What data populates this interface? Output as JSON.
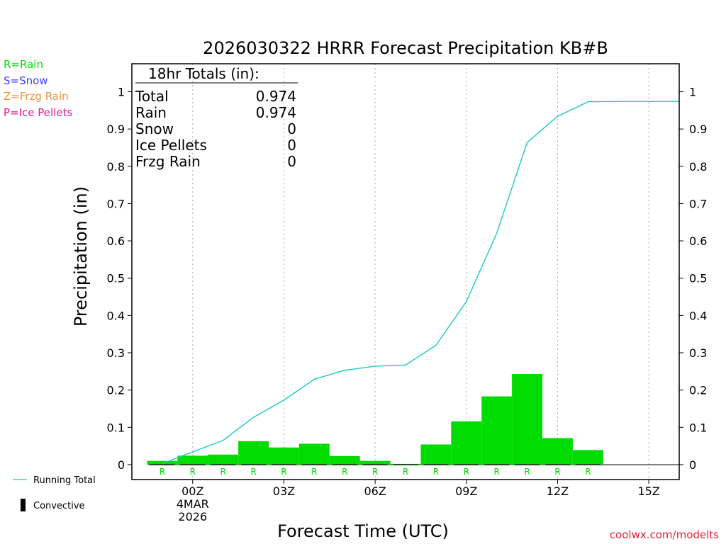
{
  "chart_data": {
    "type": "bar",
    "title": "2026030322 HRRR Forecast Precipitation KB#B",
    "xlabel": "Forecast Time (UTC)",
    "ylabel": "Precipitation (in)",
    "ylim": [
      -0.04,
      1.075
    ],
    "xlim": [
      -1.0,
      17.0
    ],
    "yticks": [
      0,
      0.1,
      0.2,
      0.3,
      0.4,
      0.5,
      0.6,
      0.7,
      0.8,
      0.9,
      1
    ],
    "ytick_labels": [
      "0",
      "0.1",
      "0.2",
      "0.3",
      "0.4",
      "0.5",
      "0.6",
      "0.7",
      "0.8",
      "0.9",
      "1"
    ],
    "xticks": [
      {
        "x": 1,
        "label": "00Z",
        "sub": [
          "4MAR",
          "2026"
        ]
      },
      {
        "x": 4,
        "label": "03Z"
      },
      {
        "x": 7,
        "label": "06Z"
      },
      {
        "x": 10,
        "label": "09Z"
      },
      {
        "x": 13,
        "label": "12Z"
      },
      {
        "x": 16,
        "label": "15Z"
      }
    ],
    "hourly_precip": {
      "name": "Hourly precipitation (Rain)",
      "color": "#00dc00",
      "x": [
        0,
        1,
        2,
        3,
        4,
        5,
        6,
        7,
        8,
        9,
        10,
        11,
        12,
        13,
        14
      ],
      "values": [
        0.01,
        0.024,
        0.027,
        0.063,
        0.046,
        0.056,
        0.023,
        0.01,
        0.002,
        0.054,
        0.116,
        0.183,
        0.243,
        0.071,
        0.039
      ],
      "ptype": [
        "R",
        "R",
        "R",
        "R",
        "R",
        "R",
        "R",
        "R",
        "R",
        "R",
        "R",
        "R",
        "R",
        "R",
        "R"
      ]
    },
    "running_total": {
      "name": "Running Total",
      "color": "#1ec8c8",
      "x": [
        0,
        1,
        2,
        3,
        4,
        5,
        6,
        7,
        8,
        9,
        10,
        11,
        12,
        13,
        14,
        15,
        16,
        17
      ],
      "values": [
        0.003,
        0.034,
        0.065,
        0.127,
        0.173,
        0.229,
        0.253,
        0.264,
        0.267,
        0.32,
        0.437,
        0.621,
        0.864,
        0.934,
        0.973,
        0.974,
        0.974,
        0.974
      ]
    },
    "convective": {
      "name": "Convective",
      "values": [
        0,
        0,
        0,
        0,
        0,
        0,
        0,
        0,
        0,
        0,
        0,
        0,
        0,
        0,
        0
      ]
    }
  },
  "totals_box": {
    "header": "18hr Totals (in):",
    "rows": [
      {
        "label": "Total",
        "value": "0.974"
      },
      {
        "label": "Rain",
        "value": "0.974"
      },
      {
        "label": "Snow",
        "value": "0"
      },
      {
        "label": "Ice Pellets",
        "value": "0"
      },
      {
        "label": "Frzg Rain",
        "value": "0"
      }
    ]
  },
  "ptype_legend": [
    {
      "text": "R=Rain",
      "color": "#00dc00"
    },
    {
      "text": "S=Snow",
      "color": "#3c3cff"
    },
    {
      "text": "Z=Frzg Rain",
      "color": "#f0963c"
    },
    {
      "text": "P=Ice Pellets",
      "color": "#f0148c"
    }
  ],
  "line_legend": {
    "running_total": "Running Total",
    "convective": "Convective"
  },
  "credit": {
    "text": "coolwx.com/modelts",
    "color": "#e61e32"
  }
}
